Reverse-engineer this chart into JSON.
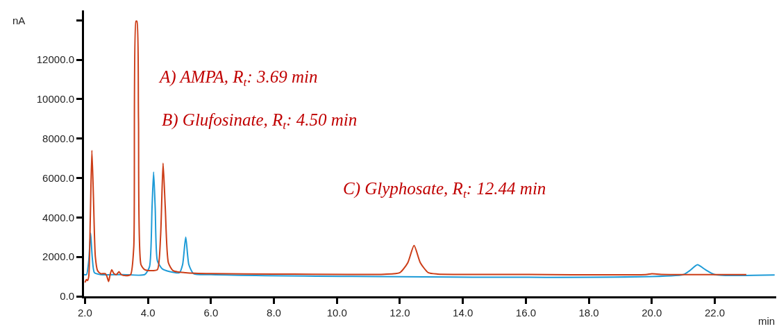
{
  "chart_data": {
    "type": "line",
    "xlabel": "min",
    "ylabel": "nA",
    "annotations": [
      "A) AMPA, R$_{t}$: 3.69 min",
      "B) Glufosinate, R$_{t}$: 4.50 min",
      "C) Glyphosate, R$_{t}$: 12.44 min"
    ],
    "series": [
      {
        "color": "#1e9bd7",
        "x": [
          1.97,
          2.05,
          2.12,
          2.18,
          2.23,
          2.3,
          2.5,
          3.2,
          3.9,
          4.05,
          4.13,
          4.18,
          4.23,
          4.3,
          4.45,
          4.7,
          5.0,
          5.1,
          5.2,
          5.3,
          5.45,
          6,
          21.0,
          21.2,
          21.45,
          21.7,
          22.0,
          23.9
        ],
        "values": [
          1100,
          1100,
          1800,
          3200,
          2000,
          1200,
          1100,
          1100,
          1100,
          1500,
          4500,
          6300,
          4500,
          1800,
          1400,
          1250,
          1200,
          1600,
          3000,
          1600,
          1150,
          1100,
          1100,
          1300,
          1600,
          1350,
          1100,
          1080
        ]
      },
      {
        "color": "#cc3d17",
        "x": [
          2.0,
          2.05,
          2.08,
          2.12,
          2.17,
          2.22,
          2.27,
          2.33,
          2.4,
          2.5,
          2.65,
          2.7,
          2.75,
          2.8,
          2.85,
          2.92,
          3.0,
          3.08,
          3.15,
          3.3,
          3.45,
          3.55,
          3.62,
          3.65,
          3.7,
          3.78,
          3.9,
          4.1,
          4.3,
          4.4,
          4.48,
          4.55,
          4.65,
          4.8,
          5.2,
          6.0,
          8,
          11.5,
          12.0,
          12.25,
          12.45,
          12.65,
          12.9,
          13.2,
          16,
          19.8,
          20.0,
          20.3,
          22,
          23.0
        ],
        "values": [
          700,
          850,
          800,
          1000,
          4000,
          7400,
          5000,
          2000,
          1300,
          1150,
          1150,
          1000,
          750,
          1100,
          1350,
          1150,
          1100,
          1250,
          1100,
          1050,
          1100,
          2500,
          13950,
          13950,
          9000,
          1600,
          1350,
          1300,
          1350,
          3000,
          6750,
          4500,
          1700,
          1300,
          1200,
          1150,
          1130,
          1120,
          1200,
          1700,
          2580,
          1700,
          1200,
          1130,
          1110,
          1100,
          1140,
          1110,
          1100,
          1100
        ]
      }
    ],
    "xlim": [
      1.97,
      23.95
    ],
    "xticks": [
      {
        "value": 2,
        "label": "2.0"
      },
      {
        "value": 4,
        "label": "4.0"
      },
      {
        "value": 6,
        "label": "6.0"
      },
      {
        "value": 8,
        "label": "8.0"
      },
      {
        "value": 10,
        "label": "10.0"
      },
      {
        "value": 12,
        "label": "12.0"
      },
      {
        "value": 14,
        "label": "14.0"
      },
      {
        "value": 16,
        "label": "16.0"
      },
      {
        "value": 18,
        "label": "18.0"
      },
      {
        "value": 20,
        "label": "20.0"
      },
      {
        "value": 22,
        "label": "22.0"
      }
    ],
    "ylim": [
      0,
      14500
    ],
    "yticks": [
      {
        "value": 0,
        "label": "0.0"
      },
      {
        "value": 2000,
        "label": "2000.0"
      },
      {
        "value": 4000,
        "label": "4000.0"
      },
      {
        "value": 6000,
        "label": "6000.0"
      },
      {
        "value": 8000,
        "label": "8000.0"
      },
      {
        "value": 10000,
        "label": "10000.0"
      },
      {
        "value": 12000,
        "label": "12000.0"
      },
      {
        "value": 14000,
        "label": null
      }
    ],
    "marker": "none",
    "line_style": "solid"
  }
}
